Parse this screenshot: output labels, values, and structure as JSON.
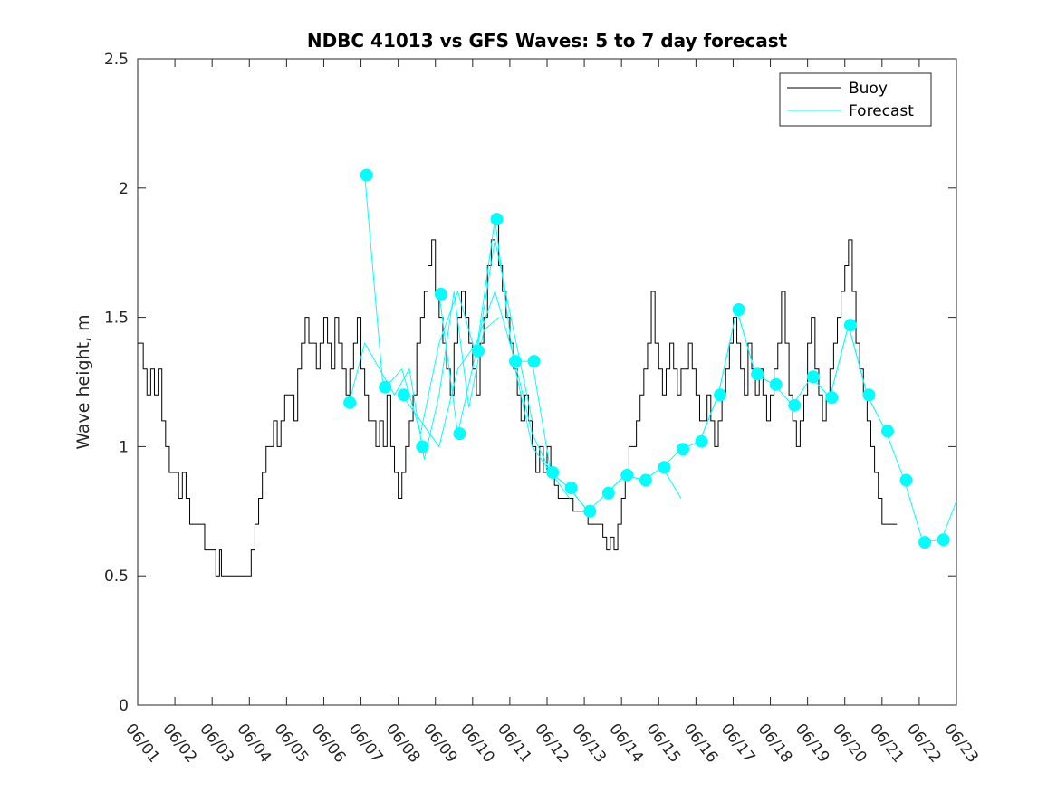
{
  "chart_data": {
    "type": "line",
    "title": "NDBC 41013 vs GFS Waves: 5 to 7 day forecast",
    "xlabel": "",
    "ylabel": "Wave height, m",
    "xlim": [
      0,
      22
    ],
    "ylim": [
      0,
      2.5
    ],
    "x_ticks": [
      "06/01",
      "06/02",
      "06/03",
      "06/04",
      "06/05",
      "06/06",
      "06/07",
      "06/08",
      "06/09",
      "06/10",
      "06/11",
      "06/12",
      "06/13",
      "06/14",
      "06/15",
      "06/16",
      "06/17",
      "06/18",
      "06/19",
      "06/20",
      "06/21",
      "06/22",
      "06/23"
    ],
    "y_ticks": [
      0,
      0.5,
      1,
      1.5,
      2,
      2.5
    ],
    "y_tick_labels": [
      "0",
      "0.5",
      "1",
      "1.5",
      "2",
      "2.5"
    ],
    "legend": {
      "position": "top-right",
      "entries": [
        "Buoy",
        "Forecast"
      ]
    },
    "colors": {
      "buoy": "#000000",
      "forecast": "#00ffff",
      "axes": "#262626"
    },
    "series": [
      {
        "name": "Buoy",
        "color": "#000000",
        "points": [
          [
            0.0,
            1.4
          ],
          [
            0.15,
            1.3
          ],
          [
            0.25,
            1.2
          ],
          [
            0.35,
            1.3
          ],
          [
            0.45,
            1.2
          ],
          [
            0.55,
            1.3
          ],
          [
            0.65,
            1.1
          ],
          [
            0.75,
            1.0
          ],
          [
            0.85,
            0.9
          ],
          [
            1.0,
            0.9
          ],
          [
            1.1,
            0.8
          ],
          [
            1.2,
            0.9
          ],
          [
            1.3,
            0.8
          ],
          [
            1.4,
            0.7
          ],
          [
            1.6,
            0.7
          ],
          [
            1.8,
            0.6
          ],
          [
            2.0,
            0.6
          ],
          [
            2.1,
            0.5
          ],
          [
            2.2,
            0.6
          ],
          [
            2.25,
            0.5
          ],
          [
            2.5,
            0.5
          ],
          [
            2.75,
            0.5
          ],
          [
            2.95,
            0.5
          ],
          [
            3.05,
            0.6
          ],
          [
            3.15,
            0.7
          ],
          [
            3.25,
            0.8
          ],
          [
            3.35,
            0.9
          ],
          [
            3.45,
            1.0
          ],
          [
            3.55,
            1.0
          ],
          [
            3.65,
            1.1
          ],
          [
            3.75,
            1.0
          ],
          [
            3.85,
            1.1
          ],
          [
            3.95,
            1.2
          ],
          [
            4.1,
            1.2
          ],
          [
            4.2,
            1.1
          ],
          [
            4.3,
            1.3
          ],
          [
            4.4,
            1.4
          ],
          [
            4.5,
            1.5
          ],
          [
            4.6,
            1.4
          ],
          [
            4.7,
            1.4
          ],
          [
            4.8,
            1.3
          ],
          [
            4.9,
            1.4
          ],
          [
            5.0,
            1.5
          ],
          [
            5.1,
            1.4
          ],
          [
            5.2,
            1.3
          ],
          [
            5.3,
            1.5
          ],
          [
            5.4,
            1.4
          ],
          [
            5.5,
            1.3
          ],
          [
            5.6,
            1.2
          ],
          [
            5.7,
            1.3
          ],
          [
            5.8,
            1.4
          ],
          [
            5.9,
            1.5
          ],
          [
            6.0,
            1.3
          ],
          [
            6.1,
            1.2
          ],
          [
            6.2,
            1.1
          ],
          [
            6.3,
            1.1
          ],
          [
            6.4,
            1.0
          ],
          [
            6.5,
            1.1
          ],
          [
            6.6,
            1.0
          ],
          [
            6.7,
            1.2
          ],
          [
            6.8,
            1.0
          ],
          [
            6.9,
            0.9
          ],
          [
            7.0,
            0.8
          ],
          [
            7.1,
            0.9
          ],
          [
            7.2,
            1.0
          ],
          [
            7.3,
            1.1
          ],
          [
            7.4,
            1.2
          ],
          [
            7.5,
            1.4
          ],
          [
            7.6,
            1.5
          ],
          [
            7.7,
            1.6
          ],
          [
            7.8,
            1.7
          ],
          [
            7.9,
            1.8
          ],
          [
            8.0,
            1.6
          ],
          [
            8.1,
            1.5
          ],
          [
            8.2,
            1.4
          ],
          [
            8.3,
            1.3
          ],
          [
            8.4,
            1.2
          ],
          [
            8.5,
            1.4
          ],
          [
            8.6,
            1.5
          ],
          [
            8.7,
            1.6
          ],
          [
            8.8,
            1.5
          ],
          [
            8.9,
            1.4
          ],
          [
            9.0,
            1.3
          ],
          [
            9.1,
            1.2
          ],
          [
            9.2,
            1.4
          ],
          [
            9.3,
            1.5
          ],
          [
            9.4,
            1.7
          ],
          [
            9.5,
            1.8
          ],
          [
            9.6,
            1.9
          ],
          [
            9.7,
            1.7
          ],
          [
            9.8,
            1.6
          ],
          [
            9.9,
            1.5
          ],
          [
            10.0,
            1.4
          ],
          [
            10.1,
            1.3
          ],
          [
            10.2,
            1.2
          ],
          [
            10.3,
            1.1
          ],
          [
            10.4,
            1.2
          ],
          [
            10.5,
            1.1
          ],
          [
            10.6,
            1.0
          ],
          [
            10.7,
            0.9
          ],
          [
            10.8,
            1.0
          ],
          [
            10.9,
            0.9
          ],
          [
            11.0,
            1.0
          ],
          [
            11.1,
            0.9
          ],
          [
            11.2,
            0.85
          ],
          [
            11.3,
            0.8
          ],
          [
            11.5,
            0.8
          ],
          [
            11.7,
            0.75
          ],
          [
            11.9,
            0.75
          ],
          [
            12.1,
            0.7
          ],
          [
            12.3,
            0.7
          ],
          [
            12.5,
            0.65
          ],
          [
            12.6,
            0.6
          ],
          [
            12.7,
            0.65
          ],
          [
            12.8,
            0.6
          ],
          [
            12.9,
            0.7
          ],
          [
            13.0,
            0.8
          ],
          [
            13.1,
            0.9
          ],
          [
            13.2,
            1.0
          ],
          [
            13.3,
            1.0
          ],
          [
            13.4,
            1.1
          ],
          [
            13.5,
            1.2
          ],
          [
            13.6,
            1.3
          ],
          [
            13.7,
            1.4
          ],
          [
            13.8,
            1.6
          ],
          [
            13.9,
            1.4
          ],
          [
            14.0,
            1.3
          ],
          [
            14.1,
            1.2
          ],
          [
            14.2,
            1.3
          ],
          [
            14.3,
            1.4
          ],
          [
            14.4,
            1.3
          ],
          [
            14.5,
            1.2
          ],
          [
            14.6,
            1.3
          ],
          [
            14.7,
            1.3
          ],
          [
            14.8,
            1.4
          ],
          [
            14.9,
            1.3
          ],
          [
            15.0,
            1.2
          ],
          [
            15.1,
            1.1
          ],
          [
            15.2,
            1.1
          ],
          [
            15.3,
            1.2
          ],
          [
            15.4,
            1.1
          ],
          [
            15.5,
            1.0
          ],
          [
            15.6,
            1.1
          ],
          [
            15.7,
            1.2
          ],
          [
            15.8,
            1.3
          ],
          [
            15.9,
            1.4
          ],
          [
            16.0,
            1.5
          ],
          [
            16.1,
            1.4
          ],
          [
            16.2,
            1.3
          ],
          [
            16.3,
            1.2
          ],
          [
            16.4,
            1.4
          ],
          [
            16.5,
            1.3
          ],
          [
            16.6,
            1.2
          ],
          [
            16.7,
            1.3
          ],
          [
            16.8,
            1.2
          ],
          [
            16.9,
            1.1
          ],
          [
            17.0,
            1.2
          ],
          [
            17.1,
            1.3
          ],
          [
            17.2,
            1.4
          ],
          [
            17.3,
            1.6
          ],
          [
            17.4,
            1.4
          ],
          [
            17.5,
            1.2
          ],
          [
            17.6,
            1.1
          ],
          [
            17.7,
            1.0
          ],
          [
            17.8,
            1.1
          ],
          [
            17.9,
            1.2
          ],
          [
            18.0,
            1.4
          ],
          [
            18.1,
            1.5
          ],
          [
            18.2,
            1.3
          ],
          [
            18.3,
            1.2
          ],
          [
            18.4,
            1.1
          ],
          [
            18.5,
            1.2
          ],
          [
            18.6,
            1.3
          ],
          [
            18.7,
            1.4
          ],
          [
            18.8,
            1.5
          ],
          [
            18.9,
            1.6
          ],
          [
            19.0,
            1.7
          ],
          [
            19.1,
            1.8
          ],
          [
            19.2,
            1.6
          ],
          [
            19.3,
            1.4
          ],
          [
            19.4,
            1.3
          ],
          [
            19.5,
            1.2
          ],
          [
            19.6,
            1.1
          ],
          [
            19.7,
            1.0
          ],
          [
            19.8,
            0.9
          ],
          [
            19.9,
            0.8
          ],
          [
            20.0,
            0.7
          ],
          [
            20.2,
            0.7
          ],
          [
            20.4,
            0.7
          ]
        ]
      },
      {
        "name": "Forecast",
        "color": "#00ffff",
        "runs": [
          [
            [
              5.7,
              1.18
            ],
            [
              6.1,
              1.4
            ],
            [
              6.5,
              1.3
            ],
            [
              6.9,
              1.2
            ],
            [
              7.3,
              1.3
            ],
            [
              7.7,
              0.95
            ],
            [
              8.1,
              1.2
            ],
            [
              8.5,
              1.6
            ],
            [
              8.9,
              1.15
            ],
            [
              9.3,
              1.45
            ],
            [
              9.7,
              1.5
            ]
          ],
          [
            [
              6.1,
              2.05
            ],
            [
              6.6,
              1.22
            ],
            [
              7.1,
              1.3
            ],
            [
              7.6,
              1.05
            ],
            [
              8.1,
              1.4
            ],
            [
              8.6,
              1.6
            ],
            [
              9.1,
              1.35
            ],
            [
              9.6,
              1.8
            ],
            [
              10.1,
              1.45
            ],
            [
              10.6,
              1.1
            ]
          ],
          [
            [
              7.1,
              1.2
            ],
            [
              7.6,
              1.1
            ],
            [
              8.1,
              1.0
            ],
            [
              8.6,
              1.3
            ],
            [
              9.1,
              1.4
            ],
            [
              9.6,
              1.6
            ],
            [
              10.1,
              1.35
            ],
            [
              10.6,
              1.05
            ],
            [
              11.1,
              0.9
            ],
            [
              11.6,
              0.8
            ]
          ],
          [
            [
              8.1,
              1.59
            ],
            [
              8.6,
              1.05
            ],
            [
              9.1,
              1.37
            ],
            [
              9.6,
              1.88
            ],
            [
              10.1,
              1.33
            ],
            [
              10.6,
              1.33
            ],
            [
              11.1,
              0.9
            ],
            [
              11.6,
              0.84
            ],
            [
              12.1,
              0.75
            ],
            [
              12.6,
              0.82
            ]
          ],
          [
            [
              10.1,
              1.33
            ],
            [
              10.6,
              1.0
            ],
            [
              11.1,
              0.9
            ],
            [
              11.6,
              0.84
            ],
            [
              12.1,
              0.75
            ],
            [
              12.6,
              0.82
            ],
            [
              13.1,
              0.89
            ],
            [
              13.6,
              0.87
            ],
            [
              14.1,
              0.92
            ],
            [
              14.6,
              0.8
            ]
          ],
          [
            [
              12.6,
              0.82
            ],
            [
              13.1,
              0.89
            ],
            [
              13.6,
              0.87
            ],
            [
              14.1,
              0.92
            ],
            [
              14.6,
              0.99
            ],
            [
              15.1,
              1.02
            ],
            [
              15.6,
              1.2
            ],
            [
              16.1,
              1.53
            ],
            [
              16.6,
              1.28
            ],
            [
              17.1,
              1.24
            ]
          ],
          [
            [
              15.1,
              1.02
            ],
            [
              15.6,
              1.2
            ],
            [
              16.1,
              1.53
            ],
            [
              16.6,
              1.28
            ],
            [
              17.1,
              1.24
            ],
            [
              17.6,
              1.16
            ],
            [
              18.1,
              1.27
            ],
            [
              18.6,
              1.19
            ],
            [
              19.1,
              1.47
            ],
            [
              19.6,
              1.2
            ]
          ],
          [
            [
              18.1,
              1.27
            ],
            [
              18.6,
              1.19
            ],
            [
              19.1,
              1.47
            ],
            [
              19.6,
              1.2
            ],
            [
              20.1,
              1.06
            ],
            [
              20.6,
              0.87
            ],
            [
              21.1,
              0.63
            ],
            [
              21.6,
              0.64
            ],
            [
              22.0,
              0.79
            ]
          ]
        ],
        "markers": [
          [
            5.7,
            1.17
          ],
          [
            6.15,
            2.05
          ],
          [
            6.65,
            1.23
          ],
          [
            7.15,
            1.2
          ],
          [
            7.65,
            1.0
          ],
          [
            8.15,
            1.59
          ],
          [
            8.65,
            1.05
          ],
          [
            9.15,
            1.37
          ],
          [
            9.65,
            1.88
          ],
          [
            10.15,
            1.33
          ],
          [
            10.65,
            1.33
          ],
          [
            11.15,
            0.9
          ],
          [
            11.65,
            0.84
          ],
          [
            12.15,
            0.75
          ],
          [
            12.65,
            0.82
          ],
          [
            13.15,
            0.89
          ],
          [
            13.65,
            0.87
          ],
          [
            14.15,
            0.92
          ],
          [
            14.65,
            0.99
          ],
          [
            15.15,
            1.02
          ],
          [
            15.65,
            1.2
          ],
          [
            16.15,
            1.53
          ],
          [
            16.65,
            1.28
          ],
          [
            17.15,
            1.24
          ],
          [
            17.65,
            1.16
          ],
          [
            18.15,
            1.27
          ],
          [
            18.65,
            1.19
          ],
          [
            19.15,
            1.47
          ],
          [
            19.65,
            1.2
          ],
          [
            20.15,
            1.06
          ],
          [
            20.65,
            0.87
          ],
          [
            21.15,
            0.63
          ],
          [
            21.65,
            0.64
          ]
        ]
      }
    ]
  }
}
